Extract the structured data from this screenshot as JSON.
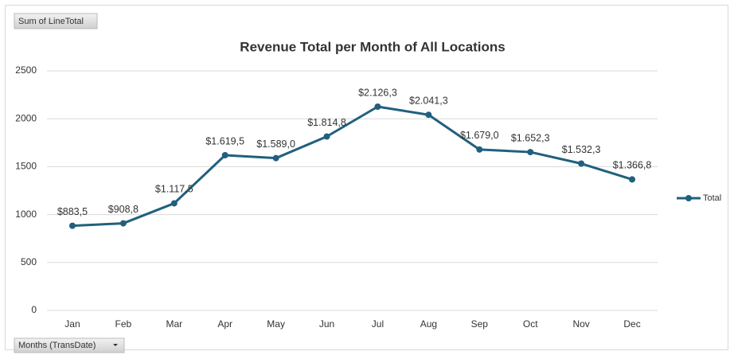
{
  "chart_data": {
    "type": "line",
    "title": "Revenue Total per Month of All Locations",
    "value_field": "Sum of LineTotal",
    "axis_field": "Months (TransDate)",
    "categories": [
      "Jan",
      "Feb",
      "Mar",
      "Apr",
      "May",
      "Jun",
      "Jul",
      "Aug",
      "Sep",
      "Oct",
      "Nov",
      "Dec"
    ],
    "series": [
      {
        "name": "Total",
        "color": "#20607e",
        "values": [
          883.5,
          908.8,
          1117.5,
          1619.5,
          1589.0,
          1814.8,
          2126.3,
          2041.3,
          1679.0,
          1652.3,
          1532.3,
          1366.8
        ],
        "value_labels": [
          "$883,5",
          "$908,8",
          "$1.117,5",
          "$1.619,5",
          "$1.589,0",
          "$1.814,8",
          "$2.126,3",
          "$2.041,3",
          "$1.679,0",
          "$1.652,3",
          "$1.532,3",
          "$1.366,8"
        ]
      }
    ],
    "ylim": [
      0,
      2500
    ],
    "yticks": [
      0,
      500,
      1000,
      1500,
      2000,
      2500
    ],
    "grid": true,
    "legend": "right"
  }
}
